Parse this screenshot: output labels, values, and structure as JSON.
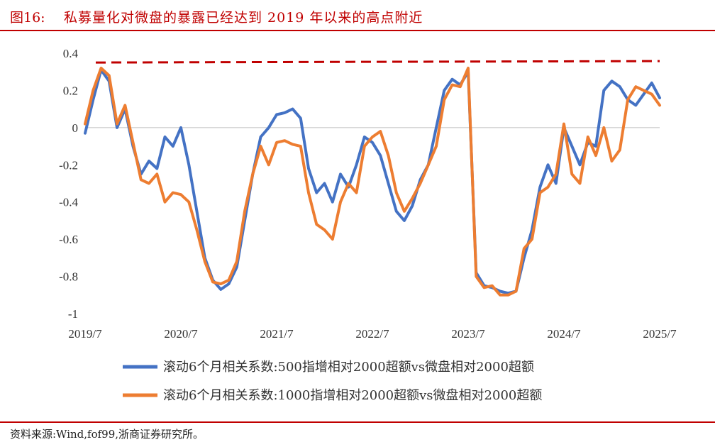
{
  "header": {
    "figure_label": "图16:",
    "title": "私募量化对微盘的暴露已经达到 2019 年以来的高点附近"
  },
  "footer": {
    "source": "资料来源:Wind,fof99,浙商证券研究所。"
  },
  "colors": {
    "accent": "#c00000",
    "series_blue": "#4472c4",
    "series_orange": "#ed7d31",
    "reference_line": "#c00000"
  },
  "chart_data": {
    "type": "line",
    "title": "",
    "xlabel": "",
    "ylabel": "",
    "ylim": [
      -1,
      0.4
    ],
    "yticks": [
      0.4,
      0.2,
      0,
      -0.2,
      -0.4,
      -0.6,
      -0.8,
      -1
    ],
    "ytick_labels": [
      "0.4",
      "0.2",
      "0",
      "-0.2",
      "-0.4",
      "-0.6",
      "-0.8",
      "-1"
    ],
    "xlim": [
      "2019-07",
      "2025-07"
    ],
    "xtick_labels": [
      "2019/7",
      "2020/7",
      "2021/7",
      "2022/7",
      "2023/7",
      "2024/7",
      "2025/7"
    ],
    "grid": false,
    "legend_position": "bottom",
    "reference_line": {
      "y": 0.35,
      "style": "dashed",
      "color": "#c00000"
    },
    "series": [
      {
        "name": "滚动6个月相关系数:500指增相对2000超额vs微盘相对2000超额",
        "color": "#4472c4",
        "x": [
          "2019-07",
          "2019-08",
          "2019-09",
          "2019-10",
          "2019-11",
          "2019-12",
          "2020-01",
          "2020-02",
          "2020-03",
          "2020-04",
          "2020-05",
          "2020-06",
          "2020-07",
          "2020-08",
          "2020-09",
          "2020-10",
          "2020-11",
          "2020-12",
          "2021-01",
          "2021-02",
          "2021-03",
          "2021-04",
          "2021-05",
          "2021-06",
          "2021-07",
          "2021-08",
          "2021-09",
          "2021-10",
          "2021-11",
          "2021-12",
          "2022-01",
          "2022-02",
          "2022-03",
          "2022-04",
          "2022-05",
          "2022-06",
          "2022-07",
          "2022-08",
          "2022-09",
          "2022-10",
          "2022-11",
          "2022-12",
          "2023-01",
          "2023-02",
          "2023-03",
          "2023-04",
          "2023-05",
          "2023-06",
          "2023-07",
          "2023-08",
          "2023-09",
          "2023-10",
          "2023-11",
          "2023-12",
          "2024-01",
          "2024-02",
          "2024-03",
          "2024-04",
          "2024-05",
          "2024-06",
          "2024-07",
          "2024-08",
          "2024-09",
          "2024-10",
          "2024-11",
          "2024-12",
          "2025-01",
          "2025-02",
          "2025-03",
          "2025-04",
          "2025-05",
          "2025-06",
          "2025-07"
        ],
        "values": [
          -0.03,
          0.15,
          0.31,
          0.25,
          0.0,
          0.1,
          -0.1,
          -0.25,
          -0.18,
          -0.22,
          -0.05,
          -0.1,
          0.0,
          -0.2,
          -0.45,
          -0.7,
          -0.82,
          -0.87,
          -0.84,
          -0.75,
          -0.5,
          -0.25,
          -0.05,
          0.0,
          0.07,
          0.08,
          0.1,
          0.05,
          -0.22,
          -0.35,
          -0.3,
          -0.4,
          -0.25,
          -0.32,
          -0.2,
          -0.05,
          -0.08,
          -0.15,
          -0.3,
          -0.45,
          -0.5,
          -0.42,
          -0.28,
          -0.2,
          0.0,
          0.2,
          0.26,
          0.23,
          0.3,
          -0.78,
          -0.85,
          -0.86,
          -0.88,
          -0.89,
          -0.88,
          -0.7,
          -0.55,
          -0.32,
          -0.2,
          -0.3,
          0.0,
          -0.1,
          -0.2,
          -0.08,
          -0.1,
          0.2,
          0.25,
          0.22,
          0.15,
          0.12,
          0.18,
          0.24,
          0.16
        ]
      },
      {
        "name": "滚动6个月相关系数:1000指增相对2000超额vs微盘相对2000超额",
        "color": "#ed7d31",
        "x": [
          "2019-07",
          "2019-08",
          "2019-09",
          "2019-10",
          "2019-11",
          "2019-12",
          "2020-01",
          "2020-02",
          "2020-03",
          "2020-04",
          "2020-05",
          "2020-06",
          "2020-07",
          "2020-08",
          "2020-09",
          "2020-10",
          "2020-11",
          "2020-12",
          "2021-01",
          "2021-02",
          "2021-03",
          "2021-04",
          "2021-05",
          "2021-06",
          "2021-07",
          "2021-08",
          "2021-09",
          "2021-10",
          "2021-11",
          "2021-12",
          "2022-01",
          "2022-02",
          "2022-03",
          "2022-04",
          "2022-05",
          "2022-06",
          "2022-07",
          "2022-08",
          "2022-09",
          "2022-10",
          "2022-11",
          "2022-12",
          "2023-01",
          "2023-02",
          "2023-03",
          "2023-04",
          "2023-05",
          "2023-06",
          "2023-07",
          "2023-08",
          "2023-09",
          "2023-10",
          "2023-11",
          "2023-12",
          "2024-01",
          "2024-02",
          "2024-03",
          "2024-04",
          "2024-05",
          "2024-06",
          "2024-07",
          "2024-08",
          "2024-09",
          "2024-10",
          "2024-11",
          "2024-12",
          "2025-01",
          "2025-02",
          "2025-03",
          "2025-04",
          "2025-05",
          "2025-06",
          "2025-07"
        ],
        "values": [
          0.02,
          0.2,
          0.32,
          0.28,
          0.02,
          0.12,
          -0.08,
          -0.28,
          -0.3,
          -0.25,
          -0.4,
          -0.35,
          -0.36,
          -0.4,
          -0.55,
          -0.72,
          -0.83,
          -0.84,
          -0.82,
          -0.72,
          -0.45,
          -0.25,
          -0.1,
          -0.2,
          -0.08,
          -0.07,
          -0.09,
          -0.1,
          -0.35,
          -0.52,
          -0.55,
          -0.6,
          -0.4,
          -0.3,
          -0.35,
          -0.1,
          -0.05,
          -0.02,
          -0.15,
          -0.35,
          -0.45,
          -0.38,
          -0.3,
          -0.2,
          -0.1,
          0.15,
          0.23,
          0.22,
          0.32,
          -0.8,
          -0.86,
          -0.85,
          -0.9,
          -0.9,
          -0.88,
          -0.65,
          -0.6,
          -0.35,
          -0.32,
          -0.25,
          0.02,
          -0.25,
          -0.3,
          -0.05,
          -0.15,
          0.0,
          -0.18,
          -0.12,
          0.15,
          0.22,
          0.2,
          0.18,
          0.12
        ]
      }
    ]
  }
}
